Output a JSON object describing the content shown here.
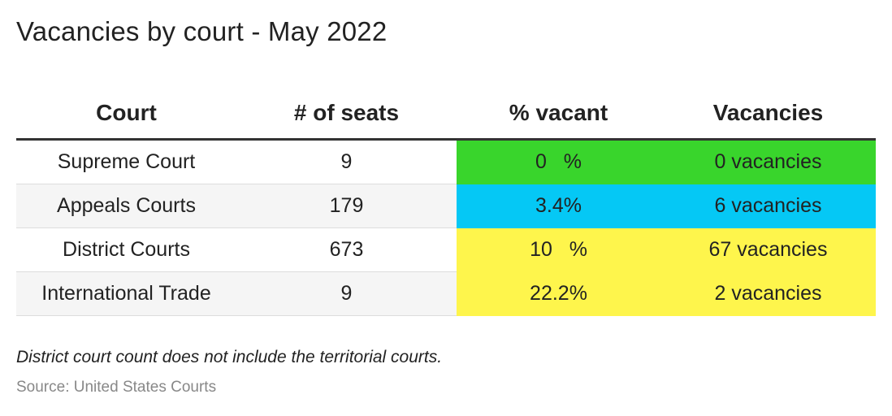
{
  "title": "Vacancies by court - May 2022",
  "note": "District court count does not include the territorial courts.",
  "source": "Source: United States Courts",
  "colors": {
    "green": "#39d52c",
    "blue": "#05c8f5",
    "yellow": "#fef54c"
  },
  "chart_data": {
    "type": "table",
    "title": "Vacancies by court - May 2022",
    "columns": [
      "Court",
      "# of seats",
      "% vacant",
      "Vacancies"
    ],
    "rows": [
      {
        "court": "Supreme Court",
        "seats": "9",
        "pct": "0   %",
        "vacancies": "0 vacancies",
        "highlight": "green"
      },
      {
        "court": "Appeals Courts",
        "seats": "179",
        "pct": "3.4%",
        "vacancies": "6 vacancies",
        "highlight": "blue"
      },
      {
        "court": "District Courts",
        "seats": "673",
        "pct": "10   %",
        "vacancies": "67 vacancies",
        "highlight": "yellow"
      },
      {
        "court": "International Trade",
        "seats": "9",
        "pct": "22.2%",
        "vacancies": "2 vacancies",
        "highlight": "yellow"
      }
    ]
  }
}
